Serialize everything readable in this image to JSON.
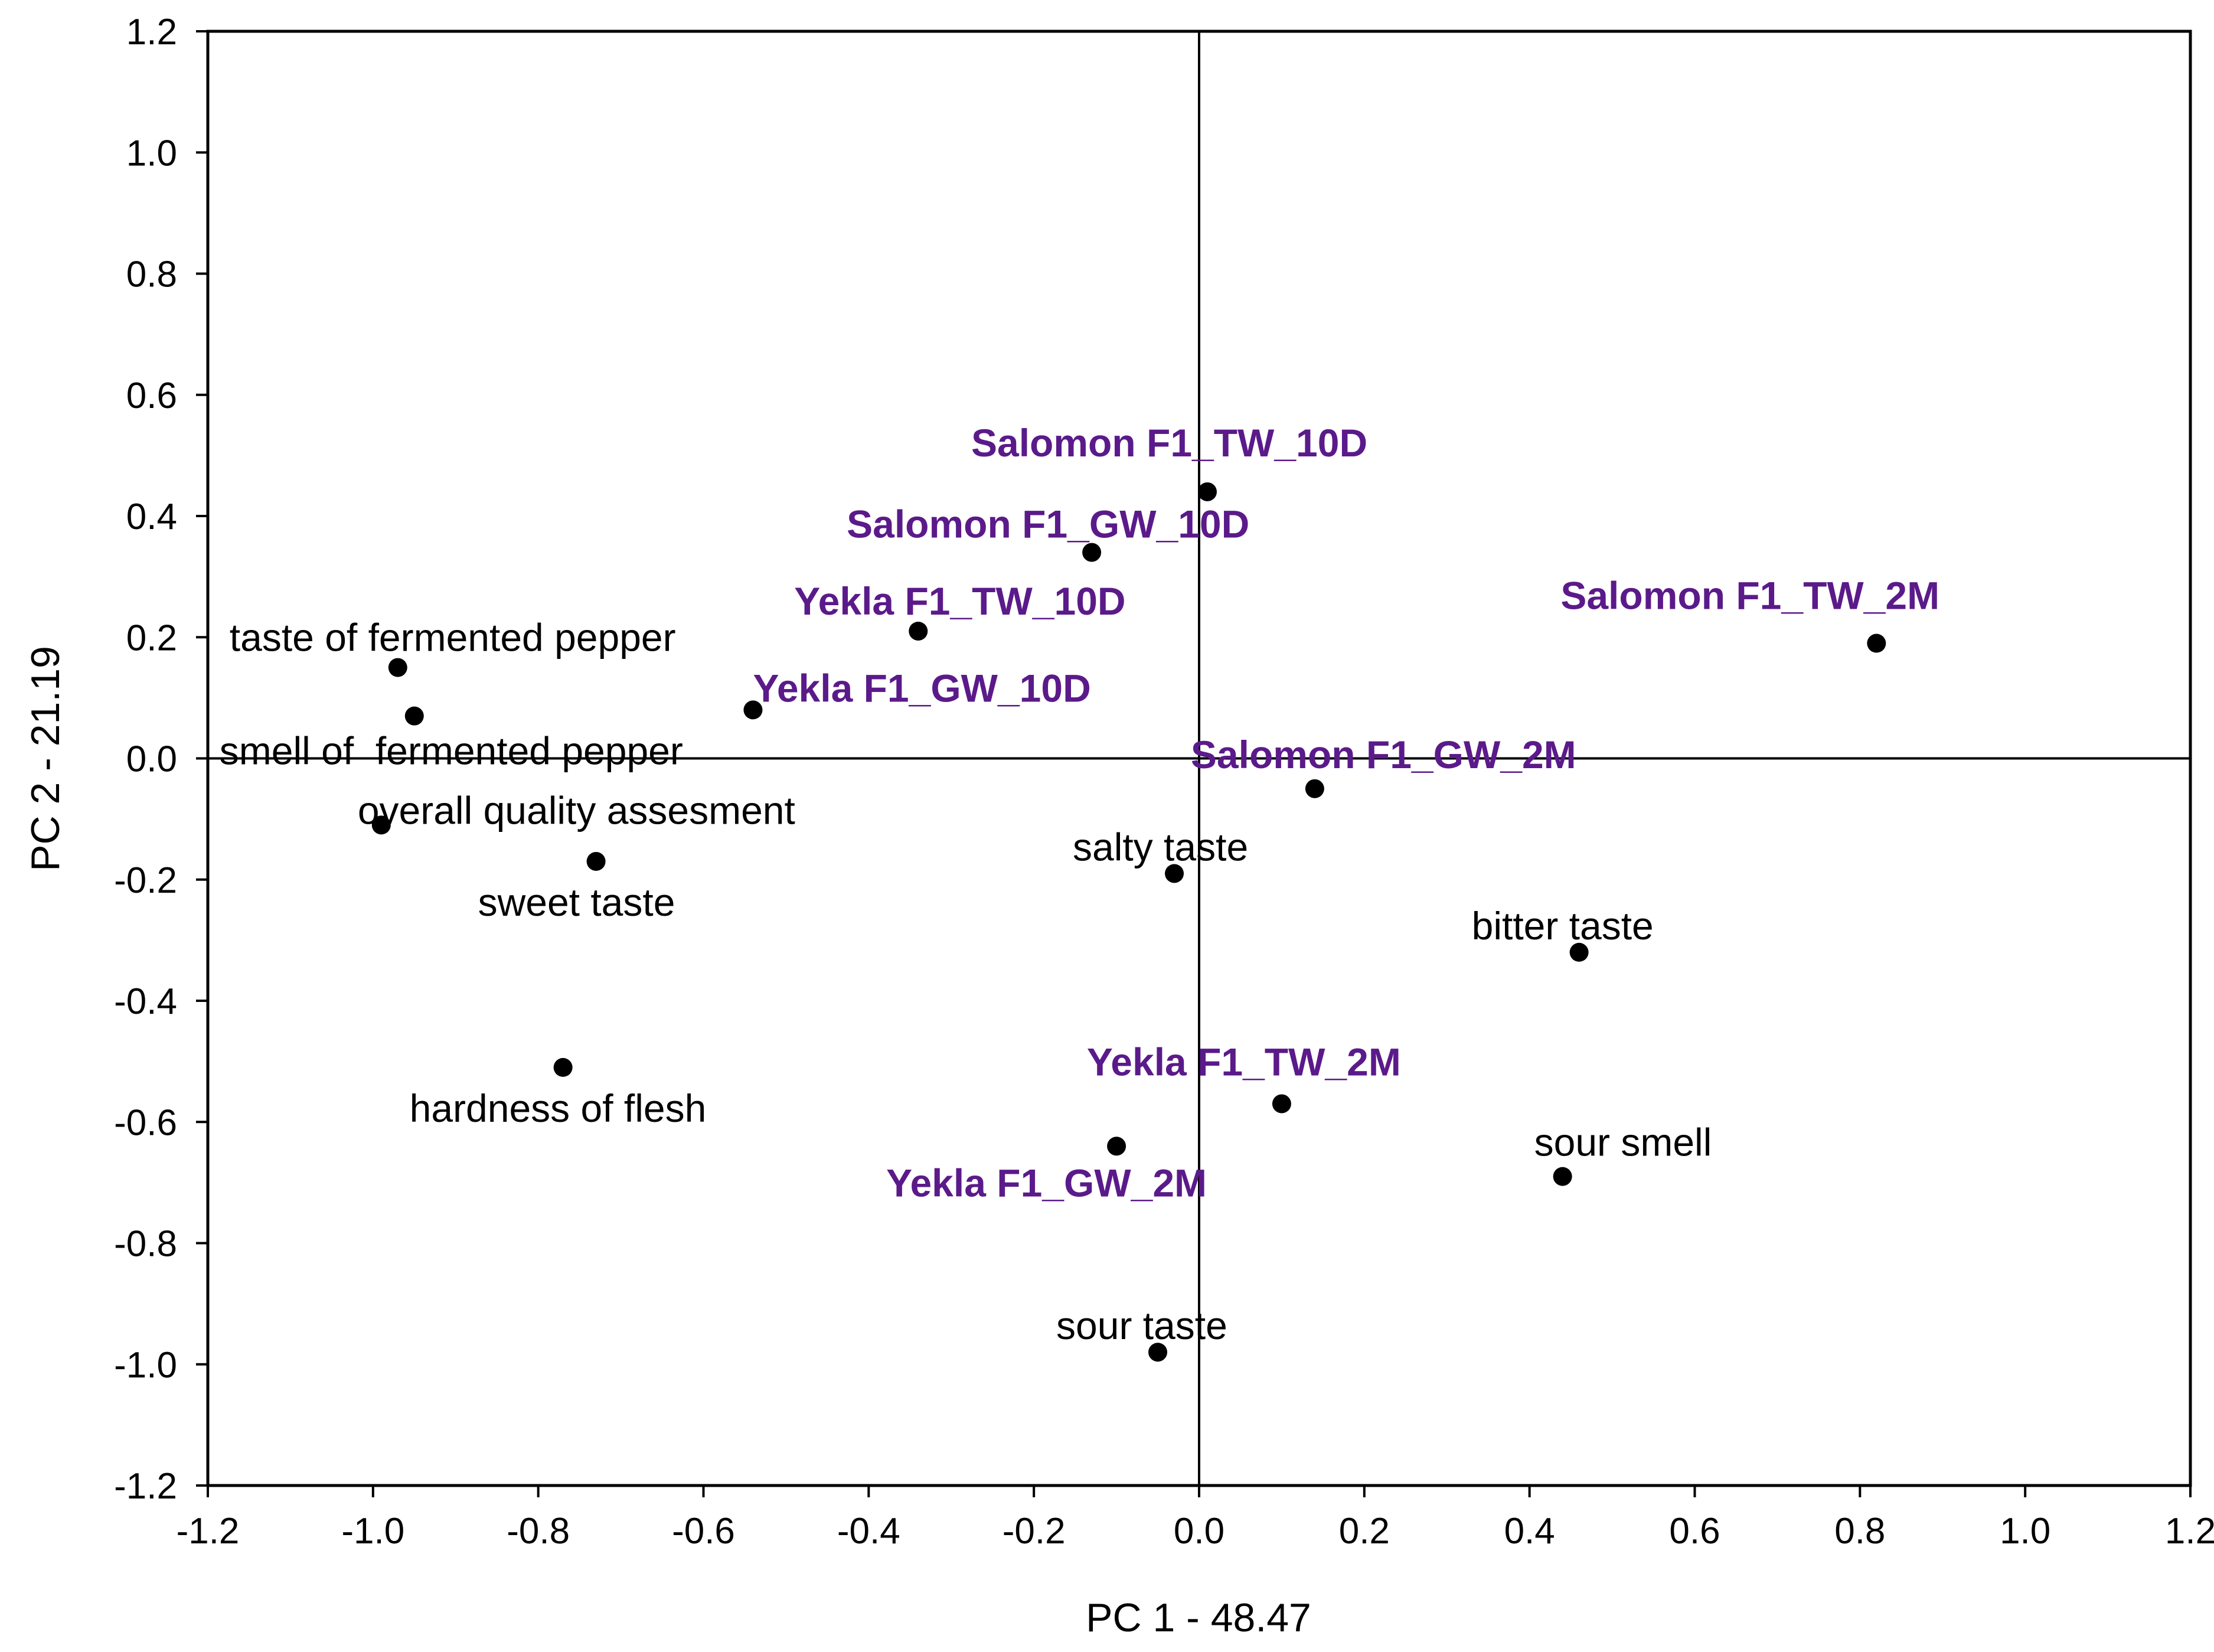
{
  "chart_data": {
    "type": "scatter",
    "title": "",
    "xlabel": "PC 1 - 48.47",
    "ylabel": "PC 2 - 21.19",
    "xlim": [
      -1.2,
      1.2
    ],
    "ylim": [
      -1.2,
      1.2
    ],
    "grid": false,
    "reference_lines": {
      "x": 0,
      "y": 0
    },
    "x_ticks": [
      "-1.2",
      "-1.0",
      "-0.8",
      "-0.6",
      "-0.4",
      "-0.2",
      "0.0",
      "0.2",
      "0.4",
      "0.6",
      "0.8",
      "1.0",
      "1.2"
    ],
    "y_ticks": [
      "1.2",
      "1.0",
      "0.8",
      "0.6",
      "0.4",
      "0.2",
      "0.0",
      "-0.2",
      "-0.4",
      "-0.6",
      "-0.8",
      "-1.0",
      "-1.2"
    ],
    "colors": {
      "variables": "#000000",
      "samples": "#5b1a8a",
      "points": "#000000"
    },
    "series": [
      {
        "name": "sensory variables",
        "points": [
          {
            "label": "taste of fermented pepper",
            "x": -0.97,
            "y": 0.15
          },
          {
            "label": "smell of  fermented pepper",
            "x": -0.95,
            "y": 0.07
          },
          {
            "label": "overall quality assesment",
            "x": -0.99,
            "y": -0.11
          },
          {
            "label": "sweet taste",
            "x": -0.73,
            "y": -0.17
          },
          {
            "label": "hardness of flesh",
            "x": -0.77,
            "y": -0.51
          },
          {
            "label": "salty taste",
            "x": -0.03,
            "y": -0.19
          },
          {
            "label": "bitter taste",
            "x": 0.46,
            "y": -0.32
          },
          {
            "label": "sour smell",
            "x": 0.44,
            "y": -0.69
          },
          {
            "label": "sour taste",
            "x": -0.05,
            "y": -0.98
          }
        ]
      },
      {
        "name": "samples",
        "points": [
          {
            "label": "Salomon F1_TW_10D",
            "x": 0.01,
            "y": 0.44
          },
          {
            "label": "Salomon F1_GW_10D",
            "x": -0.13,
            "y": 0.34
          },
          {
            "label": "Yekla F1_TW_10D",
            "x": -0.34,
            "y": 0.21
          },
          {
            "label": "Yekla F1_GW_10D",
            "x": -0.54,
            "y": 0.08
          },
          {
            "label": "Salomon F1_TW_2M",
            "x": 0.82,
            "y": 0.19
          },
          {
            "label": "Salomon F1_GW_2M",
            "x": 0.14,
            "y": -0.05
          },
          {
            "label": "Yekla F1_TW_2M",
            "x": 0.1,
            "y": -0.57
          },
          {
            "label": "Yekla F1_GW_2M",
            "x": -0.1,
            "y": -0.64
          }
        ]
      }
    ]
  }
}
